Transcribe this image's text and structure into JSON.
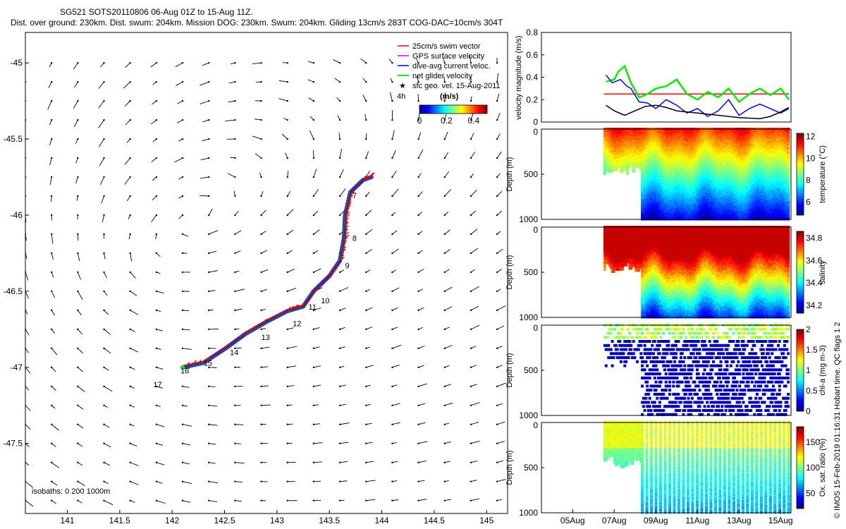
{
  "title": {
    "line1": "SG521 SOTS20110806 06-Aug 01Z to 15-Aug 11Z.",
    "line2": "Dist. over ground: 230km. Dist. swum: 204km. Mission DOG: 230km. Swum: 204km. Gliding 13cm/s 283T COG-DAC=10cm/s 304T"
  },
  "footer": {
    "credit": "© IMOS 15-Feb-2019 01:16:31 Hobart time. QC flags 1  2"
  },
  "colors": {
    "swim": "#ff0000",
    "gps": "#cc00ff",
    "dac": "#0000ff",
    "net": "#00ee00",
    "sfc": "#000000"
  },
  "chart_data": [
    {
      "type": "map",
      "xlim": [
        140.6,
        145.2
      ],
      "ylim": [
        -47.96,
        -44.8
      ],
      "x_ticks": [
        "141",
        "141.5",
        "142",
        "142.5",
        "143",
        "143.5",
        "144",
        "144.5",
        "145"
      ],
      "x_tick_values": [
        141,
        141.5,
        142,
        142.5,
        143,
        143.5,
        144,
        144.5,
        145
      ],
      "y_ticks": [
        "-45",
        "-45.5",
        "-46",
        "-46.5",
        "-47",
        "-47.5"
      ],
      "y_tick_values": [
        -45,
        -45.5,
        -46,
        -46.5,
        -47,
        -47.5
      ],
      "legend": {
        "entries": [
          "25cm/s swim vector",
          "GPS surface velocity",
          "dive-avg current veloc.",
          "net glider velocity",
          "sfc geo. vel. 15-Aug-2011"
        ],
        "extra": "4h"
      },
      "colorbar": {
        "label": "(m/s)",
        "ticks": [
          "0",
          "0.2",
          "0.4"
        ],
        "tick_values": [
          0,
          0.2,
          0.4
        ],
        "range": [
          0,
          0.5
        ]
      },
      "isobath_note": "isobaths: 0    200   1000m",
      "track": [
        [
          142.1,
          -47.0
        ],
        [
          142.3,
          -46.97
        ],
        [
          142.5,
          -46.88
        ],
        [
          142.7,
          -46.78
        ],
        [
          142.9,
          -46.7
        ],
        [
          143.1,
          -46.63
        ],
        [
          143.25,
          -46.6
        ],
        [
          143.35,
          -46.5
        ],
        [
          143.5,
          -46.4
        ],
        [
          143.6,
          -46.3
        ],
        [
          143.64,
          -46.15
        ],
        [
          143.65,
          -46.0
        ],
        [
          143.7,
          -45.85
        ],
        [
          143.82,
          -45.77
        ],
        [
          143.9,
          -45.75
        ]
      ],
      "day_labels": [
        {
          "day": "7",
          "lon": 143.72,
          "lat": -45.89
        },
        {
          "day": "8",
          "lon": 143.72,
          "lat": -46.17
        },
        {
          "day": "9",
          "lon": 143.65,
          "lat": -46.35
        },
        {
          "day": "10",
          "lon": 143.42,
          "lat": -46.58
        },
        {
          "day": "11",
          "lon": 143.3,
          "lat": -46.62
        },
        {
          "day": "12",
          "lon": 143.15,
          "lat": -46.73
        },
        {
          "day": "13",
          "lon": 142.85,
          "lat": -46.82
        },
        {
          "day": "14",
          "lon": 142.55,
          "lat": -46.92
        },
        {
          "day": "15",
          "lon": 142.3,
          "lat": -46.99
        },
        {
          "day": "16",
          "lon": 142.08,
          "lat": -47.04
        },
        {
          "day": "17",
          "lon": 141.82,
          "lat": -47.13
        }
      ]
    },
    {
      "type": "line",
      "ylabel": "velocity magnitude (m/s)",
      "ylim": [
        0,
        0.8
      ],
      "y_ticks": [
        "0",
        "0.2",
        "0.4",
        "0.6",
        "0.8"
      ],
      "y_tick_values": [
        0,
        0.2,
        0.4,
        0.6,
        0.8
      ],
      "xlim": [
        3.5,
        15.5
      ],
      "series": [
        {
          "color": "#ff0000",
          "x": [
            6.5,
            15.4
          ],
          "y": [
            0.25,
            0.25
          ]
        },
        {
          "color": "#00ee00",
          "x": [
            6.6,
            7.0,
            7.2,
            7.5,
            7.8,
            8.2,
            8.6,
            9.0,
            9.5,
            10.0,
            10.5,
            11.0,
            11.5,
            12.0,
            12.5,
            13.0,
            13.5,
            14.0,
            14.5,
            15.0,
            15.4
          ],
          "y": [
            0.36,
            0.38,
            0.45,
            0.5,
            0.35,
            0.22,
            0.25,
            0.3,
            0.32,
            0.38,
            0.25,
            0.2,
            0.27,
            0.22,
            0.3,
            0.18,
            0.25,
            0.3,
            0.24,
            0.3,
            0.2
          ]
        },
        {
          "color": "#0000ff",
          "x": [
            6.6,
            6.9,
            7.3,
            7.6,
            7.8,
            8.2,
            8.6,
            9.0,
            9.5,
            10.0,
            10.5,
            11.0,
            11.5,
            12.0,
            12.5,
            13.0,
            13.5,
            14.0,
            14.5,
            15.0,
            15.4
          ],
          "y": [
            0.42,
            0.35,
            0.38,
            0.32,
            0.3,
            0.18,
            0.17,
            0.12,
            0.2,
            0.15,
            0.08,
            0.12,
            0.05,
            0.1,
            0.2,
            0.06,
            0.12,
            0.16,
            0.12,
            0.08,
            0.12
          ]
        },
        {
          "color": "#000000",
          "x": [
            6.6,
            7.0,
            7.5,
            8.0,
            8.5,
            9.0,
            9.5,
            10.0,
            11.0,
            12.0,
            13.0,
            14.0,
            14.5,
            15.0,
            15.4
          ],
          "y": [
            0.15,
            0.1,
            0.06,
            0.1,
            0.14,
            0.15,
            0.13,
            0.1,
            0.08,
            0.06,
            0.04,
            0.03,
            0.05,
            0.09,
            0.13
          ]
        }
      ]
    },
    {
      "type": "scatter",
      "variable": "temperature",
      "ylabel": "Depth (m)",
      "ylim": [
        0,
        1000
      ],
      "y_ticks": [
        "0",
        "500",
        "1000"
      ],
      "y_tick_values": [
        0,
        500,
        1000
      ],
      "colorbar": {
        "label": "temperature (°C)",
        "range": [
          4.8,
          12.3
        ],
        "ticks": [
          "6",
          "8",
          "10",
          "12"
        ],
        "tick_values": [
          6,
          8,
          10,
          12
        ]
      }
    },
    {
      "type": "scatter",
      "variable": "salinity",
      "ylabel": "Depth (m)",
      "ylim": [
        0,
        1000
      ],
      "y_ticks": [
        "0",
        "500",
        "1000"
      ],
      "y_tick_values": [
        0,
        500,
        1000
      ],
      "colorbar": {
        "label": "salinity",
        "range": [
          34.13,
          34.86
        ],
        "ticks": [
          "34.2",
          "34.4",
          "34.6",
          "34.8"
        ],
        "tick_values": [
          34.2,
          34.4,
          34.6,
          34.8
        ]
      }
    },
    {
      "type": "scatter",
      "variable": "chl-a",
      "ylabel": "Depth (m)",
      "ylim": [
        0,
        1000
      ],
      "y_ticks": [
        "0",
        "500",
        "1000"
      ],
      "y_tick_values": [
        0,
        500,
        1000
      ],
      "colorbar": {
        "label": "chl-a (mg m-3)",
        "range": [
          0,
          2
        ],
        "ticks": [
          "0",
          "0.5",
          "1",
          "1.5",
          "2"
        ],
        "tick_values": [
          0,
          0.5,
          1,
          1.5,
          2
        ]
      }
    },
    {
      "type": "scatter",
      "variable": "oxygen",
      "ylabel": "Depth (m)",
      "ylim": [
        0,
        1000
      ],
      "y_ticks": [
        "0",
        "500",
        "1000"
      ],
      "y_tick_values": [
        0,
        500,
        1000
      ],
      "colorbar": {
        "label": "Ox. sat. ratio (%)",
        "range": [
          20,
          180
        ],
        "ticks": [
          "50",
          "100",
          "150"
        ],
        "tick_values": [
          50,
          100,
          150
        ]
      },
      "x_ticks": [
        "05Aug",
        "07Aug",
        "09Aug",
        "11Aug",
        "13Aug",
        "15Aug"
      ],
      "x_tick_values": [
        5,
        7,
        9,
        11,
        13,
        15
      ]
    }
  ]
}
